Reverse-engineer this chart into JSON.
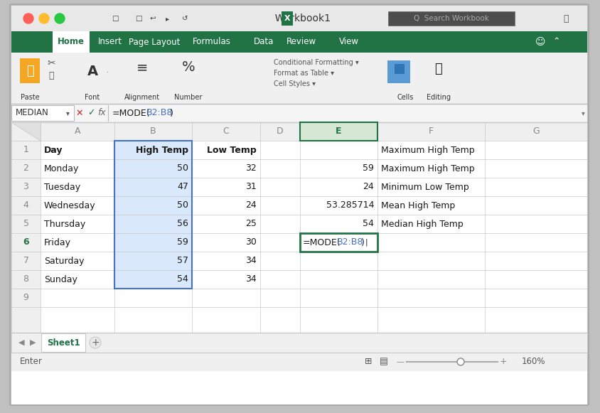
{
  "title": "Workbook1",
  "name_box": "MEDIAN",
  "formula_black1": "=MODE(",
  "formula_blue": "B2:B8",
  "formula_black2": ")",
  "rows": [
    [
      "1",
      "Day",
      "High Temp",
      "Low Temp",
      "",
      "",
      "Maximum High Temp",
      ""
    ],
    [
      "2",
      "Monday",
      "50",
      "32",
      "",
      "59",
      "Maximum High Temp",
      ""
    ],
    [
      "3",
      "Tuesday",
      "47",
      "31",
      "",
      "24",
      "Minimum Low Temp",
      ""
    ],
    [
      "4",
      "Wednesday",
      "50",
      "24",
      "",
      "53.285714",
      "Mean High Temp",
      ""
    ],
    [
      "5",
      "Thursday",
      "56",
      "25",
      "",
      "54",
      "Median High Temp",
      ""
    ],
    [
      "6",
      "Friday",
      "59",
      "30",
      "",
      "=MODE(B2:B8)",
      "",
      ""
    ],
    [
      "7",
      "Saturday",
      "57",
      "34",
      "",
      "",
      "",
      ""
    ],
    [
      "8",
      "Sunday",
      "54",
      "34",
      "",
      "",
      "",
      ""
    ],
    [
      "9",
      "",
      "",
      "",
      "",
      "",
      "",
      ""
    ]
  ],
  "status_text": "Enter",
  "zoom_text": "160%",
  "green": "#217346",
  "light_green": "#1e6b3e",
  "blue_highlight": "#d9e8fb",
  "blue_border": "#4472c4",
  "active_border": "#217346",
  "grid": "#c8c8c8",
  "header_bg": "#efefef",
  "white": "#ffffff",
  "text_dark": "#1a1a1a",
  "text_gray": "#888888",
  "text_mid": "#555555",
  "row_num_green": "#217346",
  "col_headers": [
    "A",
    "B",
    "C",
    "D",
    "E",
    "F",
    "G"
  ],
  "tab_green_text": "#217346",
  "toolbar_bg": "#f0f0f0",
  "ribbon_bg": "#217346",
  "window_outer": "#c0c0c0",
  "titlebar_bg": "#e8e8e8",
  "formula_bar_bg": "#f5f5f5",
  "sheet_bg": "#ffffff",
  "col_E_header_bg": "#d6e8d4",
  "col_E_header_border": "#217346"
}
